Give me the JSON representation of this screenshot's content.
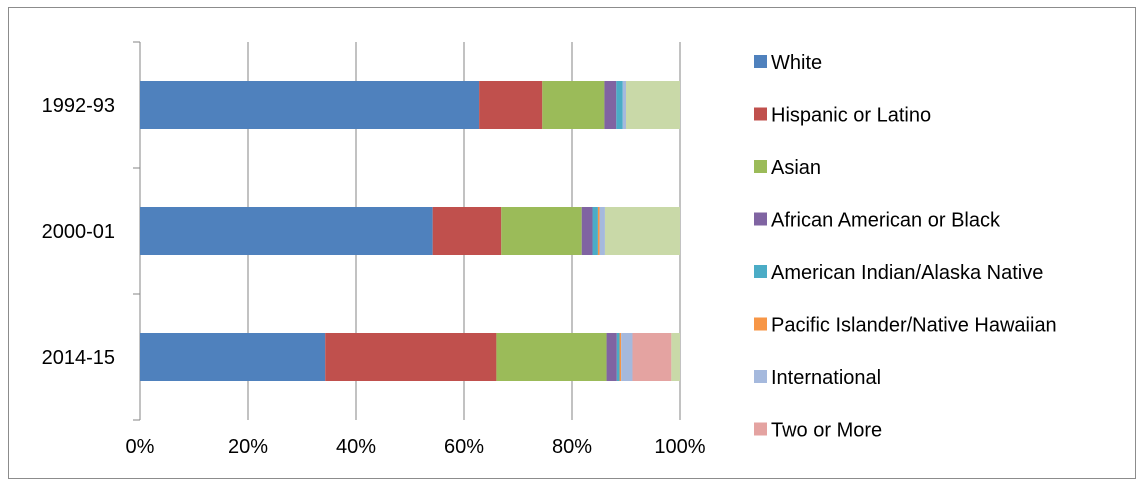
{
  "chart_data": {
    "type": "bar",
    "orientation": "horizontal",
    "stacked": true,
    "percent_stacked": true,
    "categories": [
      "1992-93",
      "2000-01",
      "2014-15"
    ],
    "series": [
      {
        "name": "White",
        "color": "#4f81bd",
        "values": [
          62.8,
          54.2,
          34.3
        ]
      },
      {
        "name": "Hispanic or Latino",
        "color": "#c0504d",
        "values": [
          11.7,
          12.7,
          31.7
        ]
      },
      {
        "name": "Asian",
        "color": "#9bbb59",
        "values": [
          11.5,
          14.9,
          20.4
        ]
      },
      {
        "name": "African American or Black",
        "color": "#8064a2",
        "values": [
          2.2,
          2.0,
          1.9
        ]
      },
      {
        "name": "American Indian/Alaska Native",
        "color": "#4bacc6",
        "values": [
          1.2,
          1.0,
          0.5
        ]
      },
      {
        "name": "Pacific Islander/Native Hawaiian",
        "color": "#f79646",
        "values": [
          0.0,
          0.3,
          0.3
        ]
      },
      {
        "name": "International",
        "color": "#a5b9dd",
        "values": [
          0.6,
          1.0,
          2.1
        ]
      },
      {
        "name": "Two or More",
        "color": "#e4a3a1",
        "values": [
          0.0,
          0.0,
          7.2
        ]
      },
      {
        "name": "",
        "color": "#c9d9a8",
        "values": [
          10.0,
          13.9,
          1.6
        ]
      }
    ],
    "x_ticks": [
      "0%",
      "20%",
      "40%",
      "60%",
      "80%",
      "100%"
    ],
    "xlim": [
      0,
      100
    ],
    "title": "",
    "xlabel": "",
    "ylabel": "",
    "grid": "vertical",
    "legend_position": "right"
  }
}
